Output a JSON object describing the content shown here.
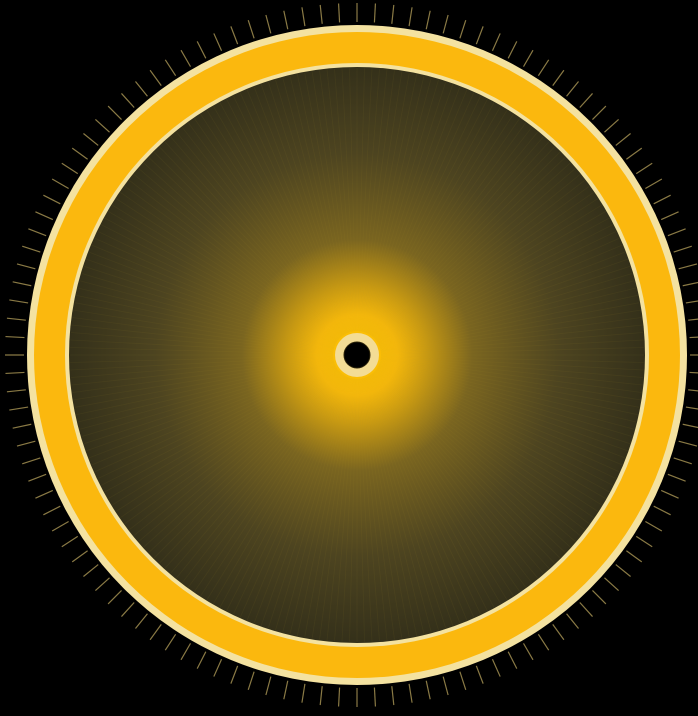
{
  "scene": {
    "subject": "radial-disc",
    "colors": {
      "background": "#000000",
      "outer_rim": "#F7C52A",
      "rim_edge": "#F6E6A6",
      "rim_line": "#E0C46A",
      "disc_dark": "#3A3418",
      "disc_mid": "#5C4F1E",
      "glow_center": "#FFC000",
      "hub_ring": "#F3DC95",
      "hub_hole": "#000000",
      "tick": "#8A7A45"
    },
    "tick_count": 120,
    "spoke_count": 240
  }
}
